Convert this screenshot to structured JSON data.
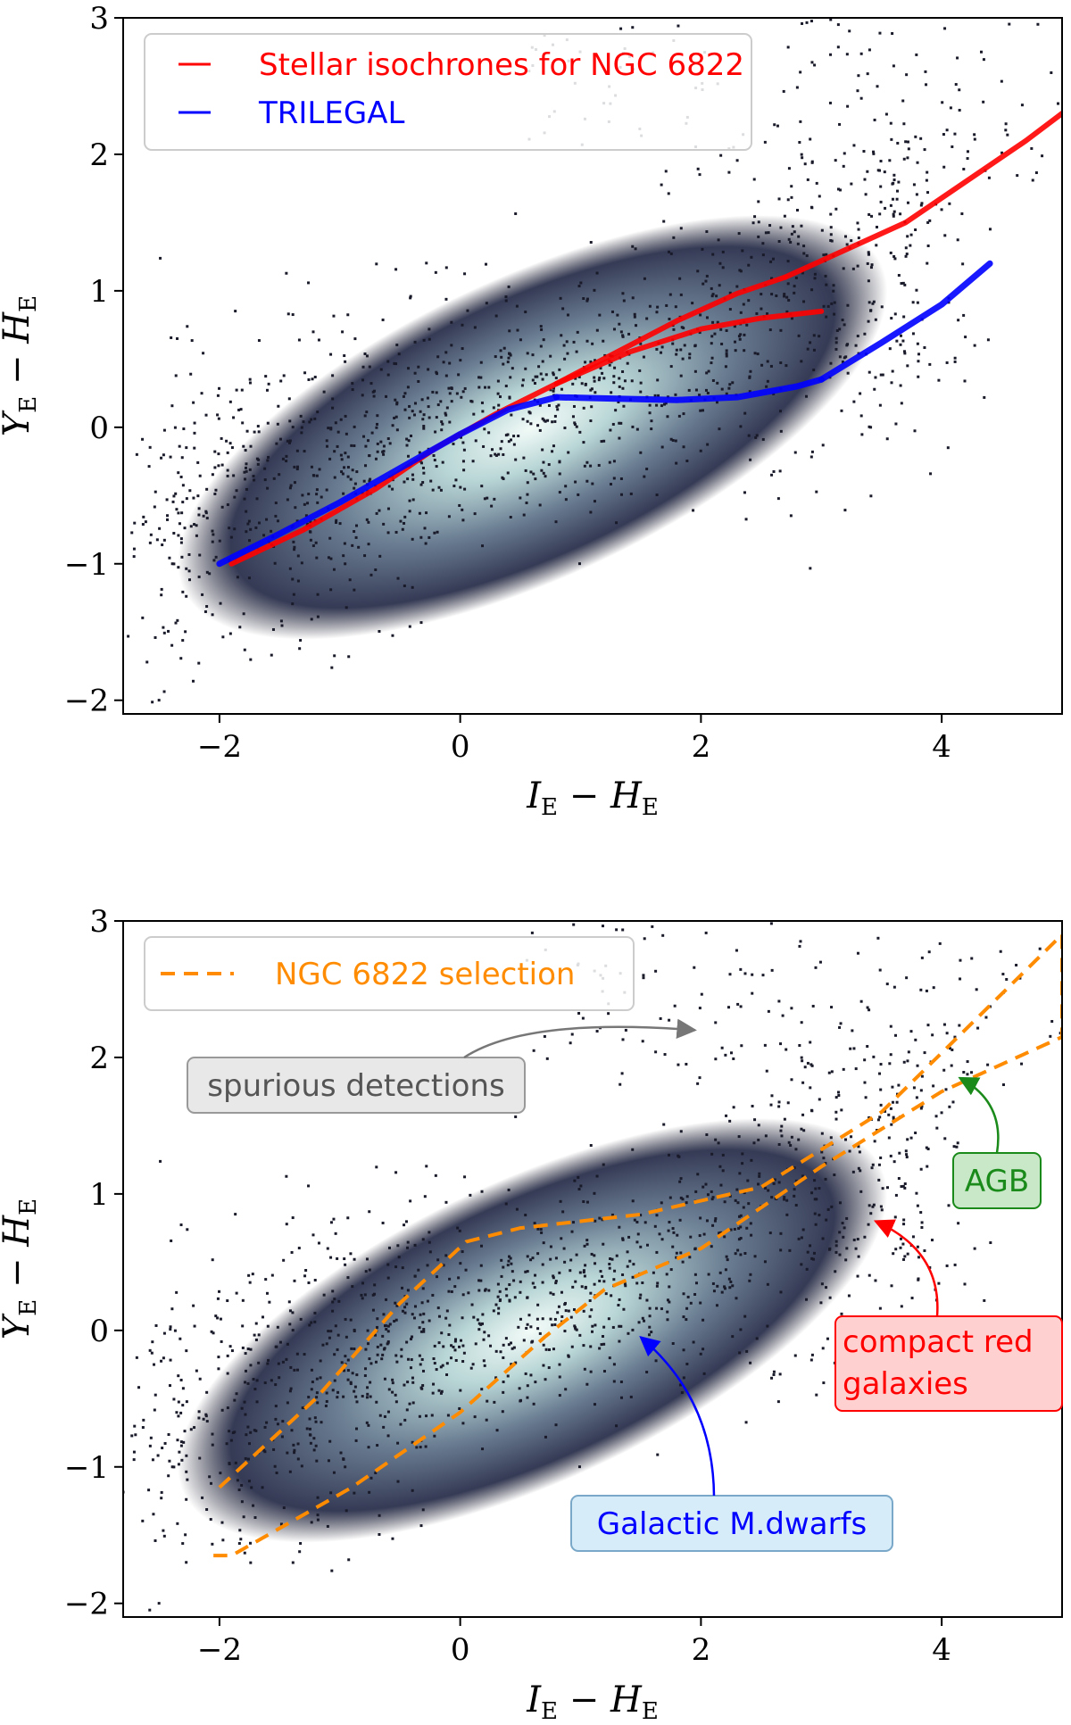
{
  "chart_data": [
    {
      "type": "scatter",
      "xlabel": "I_E − H_E",
      "ylabel": "Y_E − H_E",
      "xlim": [
        -2.8,
        5.0
      ],
      "ylim": [
        -2.1,
        3.0
      ],
      "xticks": [
        "−2",
        "0",
        "2",
        "4"
      ],
      "xtick_values": [
        -2,
        0,
        2,
        4
      ],
      "yticks": [
        "−2",
        "−1",
        "0",
        "1",
        "2",
        "3"
      ],
      "ytick_values": [
        -2,
        -1,
        0,
        1,
        2,
        3
      ],
      "density_background": "stellar sources (hexbin density, dark to white)",
      "legend_placement": "top-left",
      "series": [
        {
          "name": "Stellar isochrones for NGC 6822",
          "color": "#ff0000",
          "branches": [
            {
              "x": [
                -1.9,
                -1.3,
                -0.7,
                -0.2,
                0.3,
                0.8,
                1.3,
                1.8,
                2.3,
                2.7
              ],
              "y": [
                -1.0,
                -0.75,
                -0.45,
                -0.15,
                0.1,
                0.32,
                0.55,
                0.78,
                0.98,
                1.1
              ]
            },
            {
              "x": [
                0.8,
                1.4,
                2.0,
                2.5,
                3.0
              ],
              "y": [
                0.32,
                0.55,
                0.72,
                0.8,
                0.85
              ]
            },
            {
              "x": [
                2.7,
                3.2,
                3.7,
                4.2,
                4.7,
                5.0
              ],
              "y": [
                1.1,
                1.3,
                1.5,
                1.8,
                2.1,
                2.3
              ]
            }
          ]
        },
        {
          "name": "TRILEGAL",
          "color": "#0000ff",
          "branches": [
            {
              "x": [
                -2.0,
                -1.5,
                -1.0,
                -0.5,
                0.0,
                0.4,
                0.8
              ],
              "y": [
                -1.0,
                -0.78,
                -0.55,
                -0.3,
                -0.05,
                0.13,
                0.22
              ]
            },
            {
              "x": [
                0.8,
                1.3,
                1.8,
                2.3,
                2.8,
                3.0
              ],
              "y": [
                0.22,
                0.21,
                0.2,
                0.22,
                0.3,
                0.35
              ]
            },
            {
              "x": [
                3.0,
                3.5,
                4.0,
                4.4
              ],
              "y": [
                0.35,
                0.62,
                0.9,
                1.2
              ]
            }
          ]
        }
      ]
    },
    {
      "type": "scatter",
      "xlabel": "I_E − H_E",
      "ylabel": "Y_E − H_E",
      "xlim": [
        -2.8,
        5.0
      ],
      "ylim": [
        -2.1,
        3.0
      ],
      "xticks": [
        "−2",
        "0",
        "2",
        "4"
      ],
      "xtick_values": [
        -2,
        0,
        2,
        4
      ],
      "yticks": [
        "−2",
        "−1",
        "0",
        "1",
        "2",
        "3"
      ],
      "ytick_values": [
        -2,
        -1,
        0,
        1,
        2,
        3
      ],
      "density_background": "stellar sources (hexbin density, dark to white)",
      "legend_placement": "top-left",
      "series": [
        {
          "name": "NGC 6822 selection",
          "color": "#ff8c00",
          "style": "dashed",
          "x": [
            -2.0,
            -1.2,
            -0.5,
            0.05,
            0.5,
            1.5,
            2.5,
            3.5,
            5.0,
            5.0,
            4.0,
            3.0,
            2.0,
            1.2,
            0.7,
            0.0,
            -0.9,
            -1.9,
            -2.05
          ],
          "y": [
            -1.15,
            -0.5,
            0.2,
            0.65,
            0.75,
            0.85,
            1.05,
            1.6,
            2.9,
            2.15,
            1.75,
            1.2,
            0.6,
            0.3,
            -0.05,
            -0.6,
            -1.15,
            -1.65,
            -1.65
          ]
        }
      ],
      "annotations": [
        {
          "text": "spurious detections",
          "color": "#555555",
          "box": "#e8e8e8",
          "arrow_to": [
            1.95,
            2.2
          ]
        },
        {
          "text": "AGB",
          "color": "#1a8a1a",
          "box": "#c8e8c8",
          "arrow_to": [
            4.15,
            1.85
          ]
        },
        {
          "text_lines": [
            "compact red",
            "galaxies"
          ],
          "color": "#ff0000",
          "box": "#ffd0d0",
          "arrow_to": [
            3.45,
            0.8
          ]
        },
        {
          "text": "Galactic M.dwarfs",
          "color": "#0000ff",
          "box": "#d6ecf8",
          "arrow_to": [
            1.5,
            -0.05
          ]
        }
      ]
    }
  ]
}
